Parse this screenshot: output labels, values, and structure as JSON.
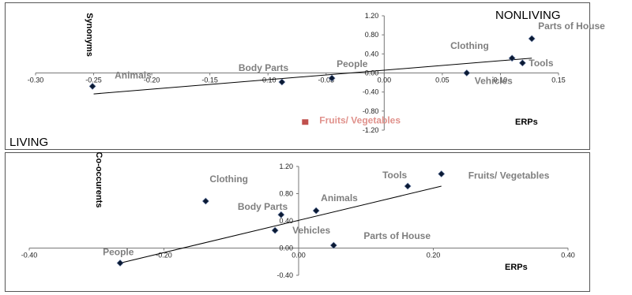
{
  "chart_data": [
    {
      "type": "scatter",
      "title": "",
      "xlabel": "ERPs",
      "ylabel": "Synonyms",
      "corner_labels": [
        "NONLIVING",
        "LIVING"
      ],
      "xlim": [
        -0.3,
        0.15
      ],
      "ylim": [
        -1.2,
        1.2
      ],
      "x_ticks": [
        "-0.30",
        "-0.25",
        "-0.20",
        "-0.15",
        "-0.10",
        "-0.05",
        "0.00",
        "0.05",
        "0.10",
        "0.15"
      ],
      "y_ticks": [
        "1.20",
        "0.80",
        "0.40",
        "0.00",
        "-0.40",
        "-0.80",
        "-1.20"
      ],
      "points": [
        {
          "label": "Animals",
          "x": -0.251,
          "y": -0.28,
          "marker": "diamond"
        },
        {
          "label": "Body Parts",
          "x": -0.088,
          "y": -0.19,
          "marker": "diamond"
        },
        {
          "label": "People",
          "x": -0.045,
          "y": -0.11,
          "marker": "diamond"
        },
        {
          "label": "Vehicles",
          "x": 0.071,
          "y": 0.0,
          "marker": "diamond"
        },
        {
          "label": "Clothing",
          "x": 0.11,
          "y": 0.31,
          "marker": "diamond"
        },
        {
          "label": "Tools",
          "x": 0.119,
          "y": 0.21,
          "marker": "diamond"
        },
        {
          "label": "Parts of House",
          "x": 0.127,
          "y": 0.72,
          "marker": "diamond"
        },
        {
          "label": "Fruits/ Vegetables",
          "x": -0.068,
          "y": -1.03,
          "marker": "square"
        }
      ],
      "trendline": {
        "x": [
          -0.25,
          0.127
        ],
        "y": [
          -0.44,
          0.31
        ]
      },
      "grid": false,
      "colors": {
        "marker": "#0b1a33",
        "outlier": "#c0504d",
        "label": "#7f7f7f",
        "outlier_label": "#e0918b"
      }
    },
    {
      "type": "scatter",
      "title": "",
      "xlabel": "ERPs",
      "ylabel": "Co-occurents",
      "xlim": [
        -0.4,
        0.4
      ],
      "ylim": [
        -0.4,
        1.2
      ],
      "x_ticks": [
        "-0.40",
        "-0.20",
        "0.00",
        "0.20",
        "0.40"
      ],
      "y_ticks": [
        "1.20",
        "0.80",
        "0.40",
        "0.00",
        "-0.40"
      ],
      "points": [
        {
          "label": "People",
          "x": -0.265,
          "y": -0.22,
          "marker": "diamond"
        },
        {
          "label": "Clothing",
          "x": -0.138,
          "y": 0.69,
          "marker": "diamond"
        },
        {
          "label": "Body Parts",
          "x": -0.026,
          "y": 0.49,
          "marker": "diamond"
        },
        {
          "label": "Vehicles",
          "x": -0.035,
          "y": 0.26,
          "marker": "diamond"
        },
        {
          "label": "Animals",
          "x": 0.026,
          "y": 0.55,
          "marker": "diamond"
        },
        {
          "label": "Parts of House",
          "x": 0.052,
          "y": 0.04,
          "marker": "diamond"
        },
        {
          "label": "Tools",
          "x": 0.162,
          "y": 0.91,
          "marker": "diamond"
        },
        {
          "label": "Fruits/ Vegetables",
          "x": 0.212,
          "y": 1.09,
          "marker": "diamond"
        }
      ],
      "trendline": {
        "x": [
          -0.265,
          0.212
        ],
        "y": [
          -0.22,
          0.91
        ]
      },
      "grid": false,
      "colors": {
        "marker": "#0b1a33",
        "label": "#7f7f7f"
      }
    }
  ]
}
